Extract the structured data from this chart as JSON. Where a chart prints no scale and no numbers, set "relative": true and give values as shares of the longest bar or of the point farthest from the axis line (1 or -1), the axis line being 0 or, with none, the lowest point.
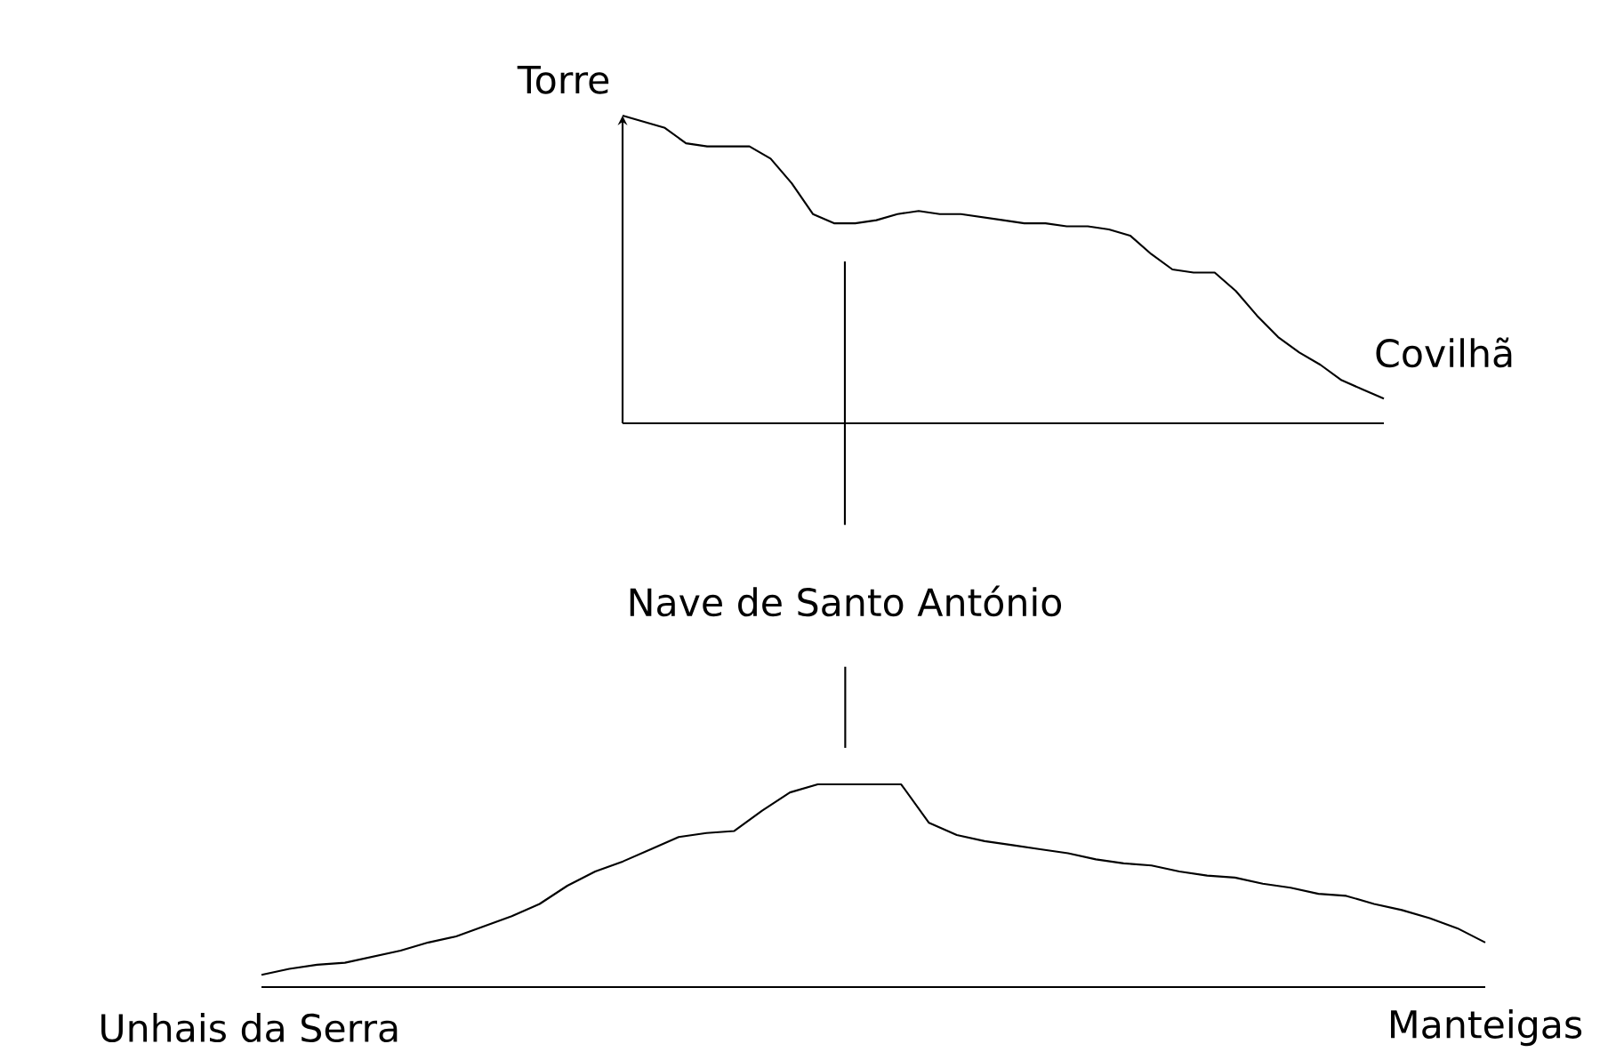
{
  "chart_data": [
    {
      "type": "line",
      "relative": true,
      "categories": [
        null,
        null,
        null,
        null,
        null,
        null,
        null,
        null,
        null,
        null,
        null,
        null,
        null,
        null,
        null,
        null,
        null,
        null,
        null,
        null,
        null,
        null,
        null,
        null,
        null,
        null,
        null,
        null,
        null,
        null,
        null,
        null,
        null,
        null,
        null,
        null,
        null
      ],
      "series": [
        {
          "color": "#000000",
          "values": [
            1.0,
            0.98,
            0.96,
            0.91,
            0.9,
            0.9,
            0.9,
            0.86,
            0.78,
            0.68,
            0.65,
            0.65,
            0.66,
            0.68,
            0.69,
            0.68,
            0.68,
            0.67,
            0.66,
            0.65,
            0.65,
            0.64,
            0.64,
            0.63,
            0.61,
            0.55,
            0.5,
            0.49,
            0.49,
            0.43,
            0.35,
            0.28,
            0.23,
            0.19,
            0.14,
            0.11,
            0.08
          ]
        }
      ],
      "annotations": [
        "Torre",
        "Covilhã",
        "Nave de Santo António"
      ]
    },
    {
      "type": "line",
      "relative": true,
      "categories": [
        null,
        null,
        null,
        null,
        null,
        null,
        null,
        null,
        null,
        null,
        null,
        null,
        null,
        null,
        null,
        null,
        null,
        null,
        null,
        null,
        null,
        null,
        null,
        null,
        null,
        null,
        null,
        null,
        null,
        null,
        null,
        null,
        null,
        null,
        null,
        null,
        null,
        null,
        null,
        null,
        null,
        null,
        null,
        null,
        null
      ],
      "series": [
        {
          "color": "#000000",
          "values": [
            0.06,
            0.09,
            0.11,
            0.12,
            0.15,
            0.18,
            0.22,
            0.25,
            0.3,
            0.35,
            0.41,
            0.5,
            0.57,
            0.62,
            0.68,
            0.74,
            0.76,
            0.77,
            0.87,
            0.96,
            1.0,
            1.0,
            1.0,
            1.0,
            0.81,
            0.75,
            0.72,
            0.7,
            0.68,
            0.66,
            0.63,
            0.61,
            0.6,
            0.57,
            0.55,
            0.54,
            0.51,
            0.49,
            0.46,
            0.45,
            0.41,
            0.38,
            0.34,
            0.29,
            0.22
          ]
        }
      ],
      "annotations": [
        "Unhais da Serra",
        "Manteigas"
      ]
    }
  ]
}
